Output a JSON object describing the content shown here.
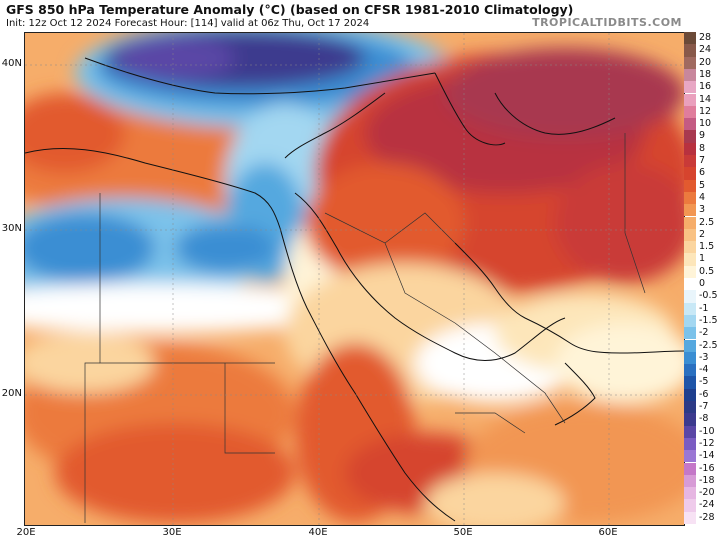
{
  "header": {
    "title": "GFS 850 hPa Temperature Anomaly (°C) (based on CFSR 1981-2010 Climatology)",
    "subtitle": "Init: 12z Oct 12 2024   Forecast Hour: [114]   valid at 06z Thu, Oct 17 2024",
    "brand": "TROPICALTIDBITS.COM"
  },
  "axes": {
    "lat_labels": [
      "40N",
      "30N",
      "20N"
    ],
    "lon_labels": [
      "20E",
      "30E",
      "40E",
      "50E",
      "60E"
    ]
  },
  "legend": {
    "entries": [
      {
        "label": "28",
        "color": "#6b4a38"
      },
      {
        "label": "24",
        "color": "#88594a"
      },
      {
        "label": "20",
        "color": "#a06a60"
      },
      {
        "label": "18",
        "color": "#c8879c"
      },
      {
        "label": "16",
        "color": "#e8a7c4"
      },
      {
        "label": "14",
        "color": "#eaa0bd"
      },
      {
        "label": "12",
        "color": "#e07d9c"
      },
      {
        "label": "10",
        "color": "#c45b83"
      },
      {
        "label": "9",
        "color": "#a8394f"
      },
      {
        "label": "8",
        "color": "#b8313f"
      },
      {
        "label": "7",
        "color": "#c93a38"
      },
      {
        "label": "6",
        "color": "#d6442e"
      },
      {
        "label": "5",
        "color": "#e25a2f"
      },
      {
        "label": "4",
        "color": "#ec7a3e"
      },
      {
        "label": "3",
        "color": "#f29652"
      },
      {
        "label": "2.5",
        "color": "#f6ad6a"
      },
      {
        "label": "2",
        "color": "#f9c284"
      },
      {
        "label": "1.5",
        "color": "#fbd59f"
      },
      {
        "label": "1",
        "color": "#fde6ba"
      },
      {
        "label": "0.5",
        "color": "#fff4d8"
      },
      {
        "label": "0",
        "color": "#ffffff"
      },
      {
        "label": "-0.5",
        "color": "#e9f5fb"
      },
      {
        "label": "-1",
        "color": "#c8e8f6"
      },
      {
        "label": "-1.5",
        "color": "#a3d7f1"
      },
      {
        "label": "-2",
        "color": "#7bc2ea"
      },
      {
        "label": "-2.5",
        "color": "#55a8df"
      },
      {
        "label": "-3",
        "color": "#3a8ed3"
      },
      {
        "label": "-4",
        "color": "#2a70c0"
      },
      {
        "label": "-5",
        "color": "#1e55a8"
      },
      {
        "label": "-6",
        "color": "#1e3f8e"
      },
      {
        "label": "-7",
        "color": "#2c3a86"
      },
      {
        "label": "-8",
        "color": "#3c3a8e"
      },
      {
        "label": "-10",
        "color": "#5a46a6"
      },
      {
        "label": "-12",
        "color": "#7a5cc2"
      },
      {
        "label": "-14",
        "color": "#9a77d4"
      },
      {
        "label": "-16",
        "color": "#c478c8"
      },
      {
        "label": "-18",
        "color": "#d79bd6"
      },
      {
        "label": "-20",
        "color": "#e6b6e2"
      },
      {
        "label": "-24",
        "color": "#efcbeb"
      },
      {
        "label": "-28",
        "color": "#f7e2f4"
      }
    ]
  }
}
